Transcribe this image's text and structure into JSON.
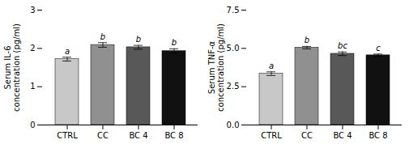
{
  "chart_data": [
    {
      "type": "bar",
      "ylabel": "Serum IL-6\nconcentration (pg/ml)",
      "categories": [
        "CTRL",
        "CC",
        "BC 4",
        "BC 8"
      ],
      "values": [
        1.72,
        2.09,
        2.03,
        1.93
      ],
      "errors": [
        0.05,
        0.06,
        0.05,
        0.06
      ],
      "colors": [
        "#c8c8c8",
        "#909090",
        "#585858",
        "#111111"
      ],
      "annotations": [
        "a",
        "b",
        "b",
        "b"
      ],
      "ylim": [
        0,
        3.0
      ],
      "yticks": [
        0,
        1,
        2,
        3
      ]
    },
    {
      "type": "bar",
      "ylabel": "Serum TNF-α\nconcentration (pg/ml)",
      "categories": [
        "CTRL",
        "CC",
        "BC 4",
        "BC 8"
      ],
      "values": [
        3.35,
        5.05,
        4.65,
        4.55
      ],
      "errors": [
        0.12,
        0.08,
        0.12,
        0.08
      ],
      "colors": [
        "#c8c8c8",
        "#909090",
        "#585858",
        "#111111"
      ],
      "annotations": [
        "a",
        "b",
        "bc",
        "c"
      ],
      "ylim": [
        0,
        7.5
      ],
      "yticks": [
        {
          "value": 0,
          "label": "0.0"
        },
        2.5,
        {
          "value": 5,
          "label": "5.0"
        },
        7.5
      ]
    }
  ]
}
